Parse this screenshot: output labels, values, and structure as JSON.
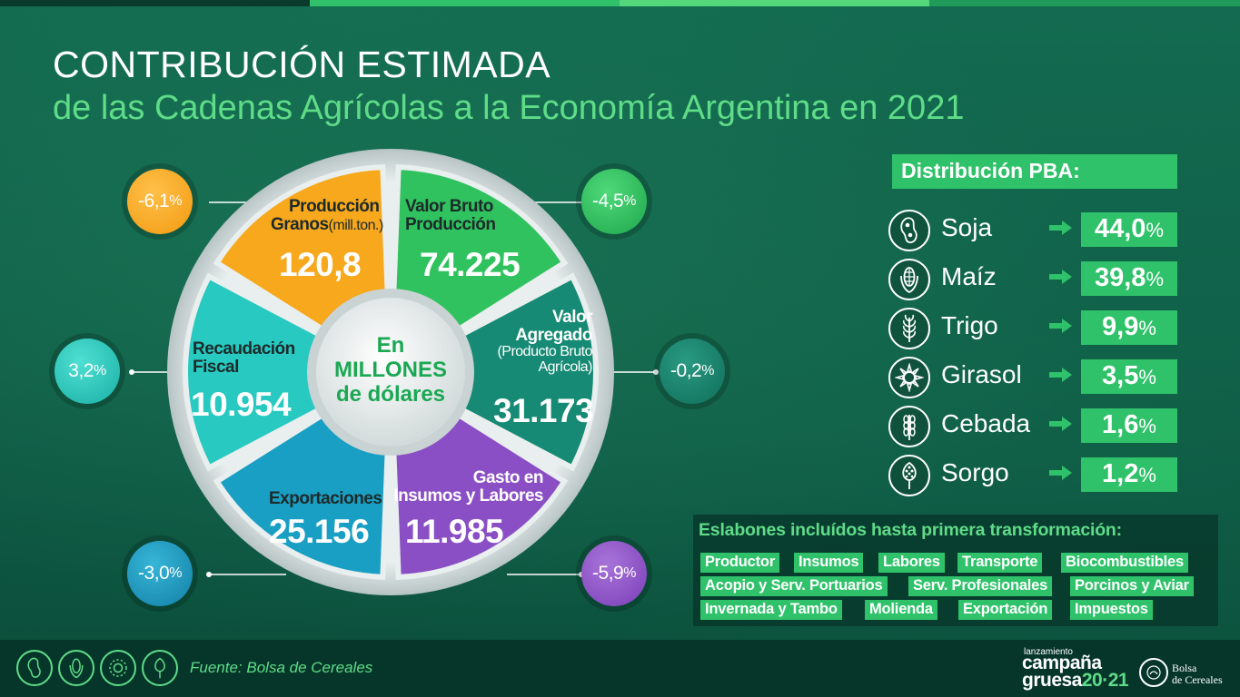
{
  "title": {
    "line1": "CONTRIBUCIÓN ESTIMADA",
    "line2": "de las Cadenas Agrícolas a la Economía Argentina en 2021"
  },
  "center": {
    "line1": "En",
    "line2": "MILLONES",
    "line3": "de dólares"
  },
  "segments": [
    {
      "label1": "Producción",
      "label2": "Granos",
      "label_unit": "(mill.ton.)",
      "value": "120,8",
      "change": "-6,1",
      "color": "#f7a81c"
    },
    {
      "label1": "Valor Bruto",
      "label2": "Producción",
      "value": "74.225",
      "change": "-4,5",
      "color": "#2fc25e"
    },
    {
      "label1": "Valor",
      "label2": "Agregado",
      "label_sub1": "(Producto Bruto",
      "label_sub2": "Agrícola)",
      "value": "31.173",
      "change": "-0,2",
      "color": "#168a74"
    },
    {
      "label1": "Gasto en",
      "label2": "Insumos y Labores",
      "value": "11.985",
      "change": "-5,9",
      "color": "#8a4fc4"
    },
    {
      "label1": "Exportaciones",
      "value": "25.156",
      "change": "-3,0",
      "color": "#1a9fc4"
    },
    {
      "label1": "Recaudación",
      "label2": "Fiscal",
      "value": "10.954",
      "change": "3,2",
      "color": "#27c9c0"
    }
  ],
  "percent_sign": "%",
  "pba": {
    "title": "Distribución PBA:",
    "items": [
      {
        "name": "Soja",
        "value": "44,0",
        "icon": "soy-icon"
      },
      {
        "name": "Maíz",
        "value": "39,8",
        "icon": "corn-icon"
      },
      {
        "name": "Trigo",
        "value": "9,9",
        "icon": "wheat-icon"
      },
      {
        "name": "Girasol",
        "value": "3,5",
        "icon": "sunflower-icon"
      },
      {
        "name": "Cebada",
        "value": "1,6",
        "icon": "barley-icon"
      },
      {
        "name": "Sorgo",
        "value": "1,2",
        "icon": "sorghum-icon"
      }
    ]
  },
  "eslabones": {
    "title": "Eslabones incluídos hasta primera transformación:",
    "tags": [
      "Productor",
      "Insumos",
      "Labores",
      "Transporte",
      "Biocombustibles",
      "Acopio y Serv. Portuarios",
      "Serv. Profesionales",
      "Porcinos y Aviar",
      "Invernada y Tambo",
      "Molienda",
      "Exportación",
      "Impuestos"
    ]
  },
  "footer": {
    "source": "Fuente: Bolsa de Cereales",
    "campaign_small": "lanzamiento",
    "campaign_1": "campaña",
    "campaign_2": "gruesa",
    "campaign_year": "20·21",
    "bolsa_1": "Bolsa",
    "bolsa_2": "de Cereales"
  },
  "colors": {
    "accent": "#2fc26a",
    "accent_light": "#5fdc88",
    "background": "#0d5b45"
  }
}
